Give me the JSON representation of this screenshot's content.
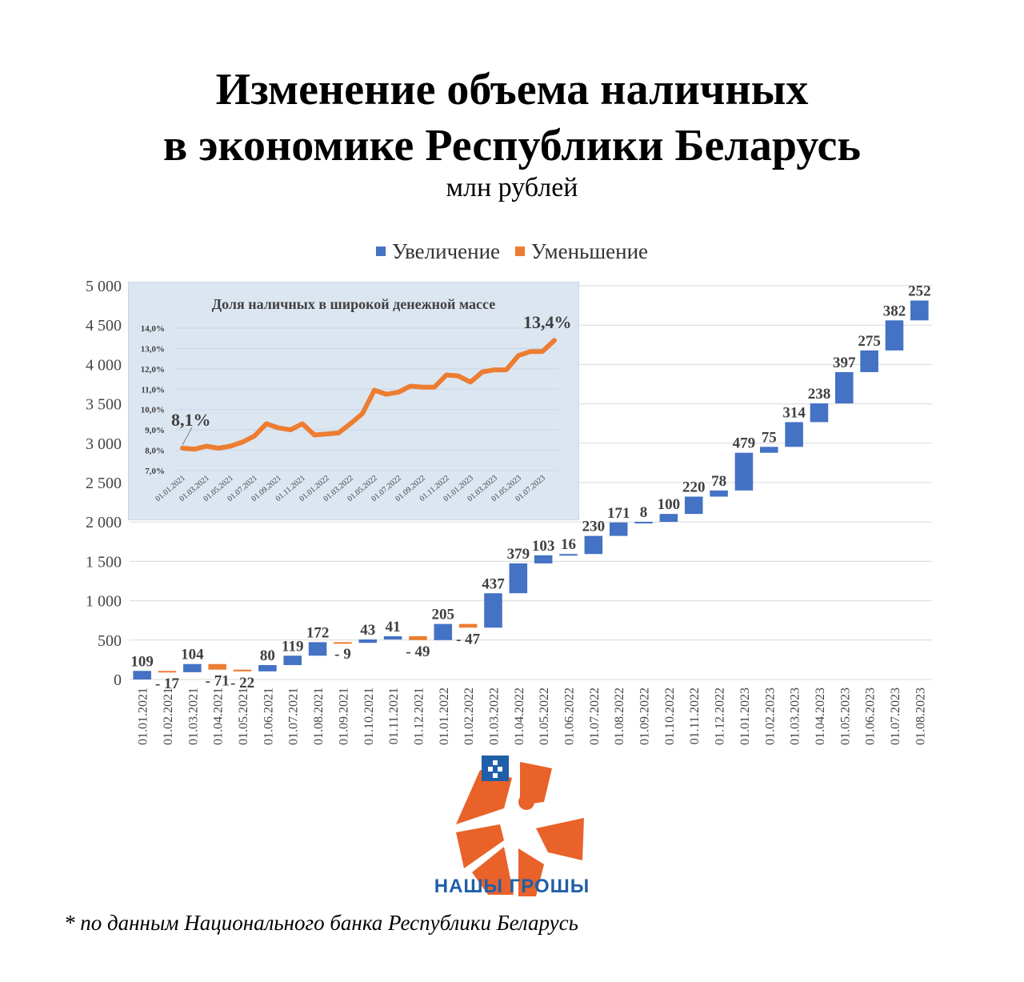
{
  "title_line1": "Изменение объема наличных",
  "title_line2": "в экономике Республики Беларусь",
  "subtitle": "млн рублей",
  "legend": {
    "increase": "Увеличение",
    "decrease": "Уменьшение"
  },
  "colors": {
    "increase": "#4472c4",
    "decrease": "#ed7d31",
    "inset_bg": "#dce6f1",
    "inset_line": "#ed7d31"
  },
  "footnote": "* по данным Национального банка Республики Беларусь",
  "logo_text": "НАШЫ ГРОШЫ",
  "chart_data": [
    {
      "type": "bar",
      "subtype": "waterfall",
      "ylim": [
        0,
        5000
      ],
      "yticks": [
        "0",
        "500",
        "1 000",
        "1 500",
        "2 000",
        "2 500",
        "3 000",
        "3 500",
        "4 000",
        "4 500",
        "5 000"
      ],
      "grid": true,
      "legend_position": "top",
      "categories": [
        "01.01.2021",
        "01.02.2021",
        "01.03.2021",
        "01.04.2021",
        "01.05.2021",
        "01.06.2021",
        "01.07.2021",
        "01.08.2021",
        "01.09.2021",
        "01.10.2021",
        "01.11.2021",
        "01.12.2021",
        "01.01.2022",
        "01.02.2022",
        "01.03.2022",
        "01.04.2022",
        "01.05.2022",
        "01.06.2022",
        "01.07.2022",
        "01.08.2022",
        "01.09.2022",
        "01.10.2022",
        "01.11.2022",
        "01.12.2022",
        "01.01.2023",
        "01.02.2023",
        "01.03.2023",
        "01.04.2023",
        "01.05.2023",
        "01.06.2023",
        "01.07.2023",
        "01.08.2023"
      ],
      "changes": [
        109,
        -17,
        104,
        -71,
        -22,
        80,
        119,
        172,
        -9,
        43,
        41,
        -49,
        205,
        -47,
        437,
        379,
        103,
        16,
        230,
        171,
        8,
        100,
        220,
        78,
        479,
        75,
        314,
        238,
        397,
        275,
        382,
        252
      ],
      "labels": [
        "109",
        "- 17",
        "104",
        "- 71",
        "- 22",
        "80",
        "119",
        "172",
        "- 9",
        "43",
        "41",
        "- 49",
        "205",
        "- 47",
        "437",
        "379",
        "103",
        "16",
        "230",
        "171",
        "8",
        "100",
        "220",
        "78",
        "479",
        "75",
        "314",
        "238",
        "397",
        "275",
        "382",
        "252"
      ]
    },
    {
      "type": "line",
      "title": "Доля наличных в широкой денежной массе",
      "ylim": [
        7.0,
        14.0
      ],
      "yticks": [
        "7,0%",
        "8,0%",
        "9,0%",
        "10,0%",
        "11,0%",
        "12,0%",
        "13,0%",
        "14,0%"
      ],
      "xticks": [
        "01.01.2021",
        "01.03.2021",
        "01.05.2021",
        "01.07.2021",
        "01.09.2021",
        "01.11.2021",
        "01.01.2022",
        "01.03.2022",
        "01.05.2022",
        "01.07.2022",
        "01.09.2022",
        "01.11.2022",
        "01.01.2023",
        "01.03.2023",
        "01.05.2023",
        "01.07.2023"
      ],
      "values": [
        8.1,
        8.05,
        8.2,
        8.1,
        8.2,
        8.4,
        8.7,
        9.3,
        9.1,
        9.0,
        9.3,
        8.75,
        8.8,
        8.85,
        9.3,
        9.8,
        10.95,
        10.75,
        10.85,
        11.15,
        11.1,
        11.1,
        11.7,
        11.65,
        11.35,
        11.85,
        11.95,
        11.95,
        12.65,
        12.85,
        12.85,
        13.4
      ],
      "start_label": "8,1%",
      "end_label": "13,4%"
    }
  ]
}
